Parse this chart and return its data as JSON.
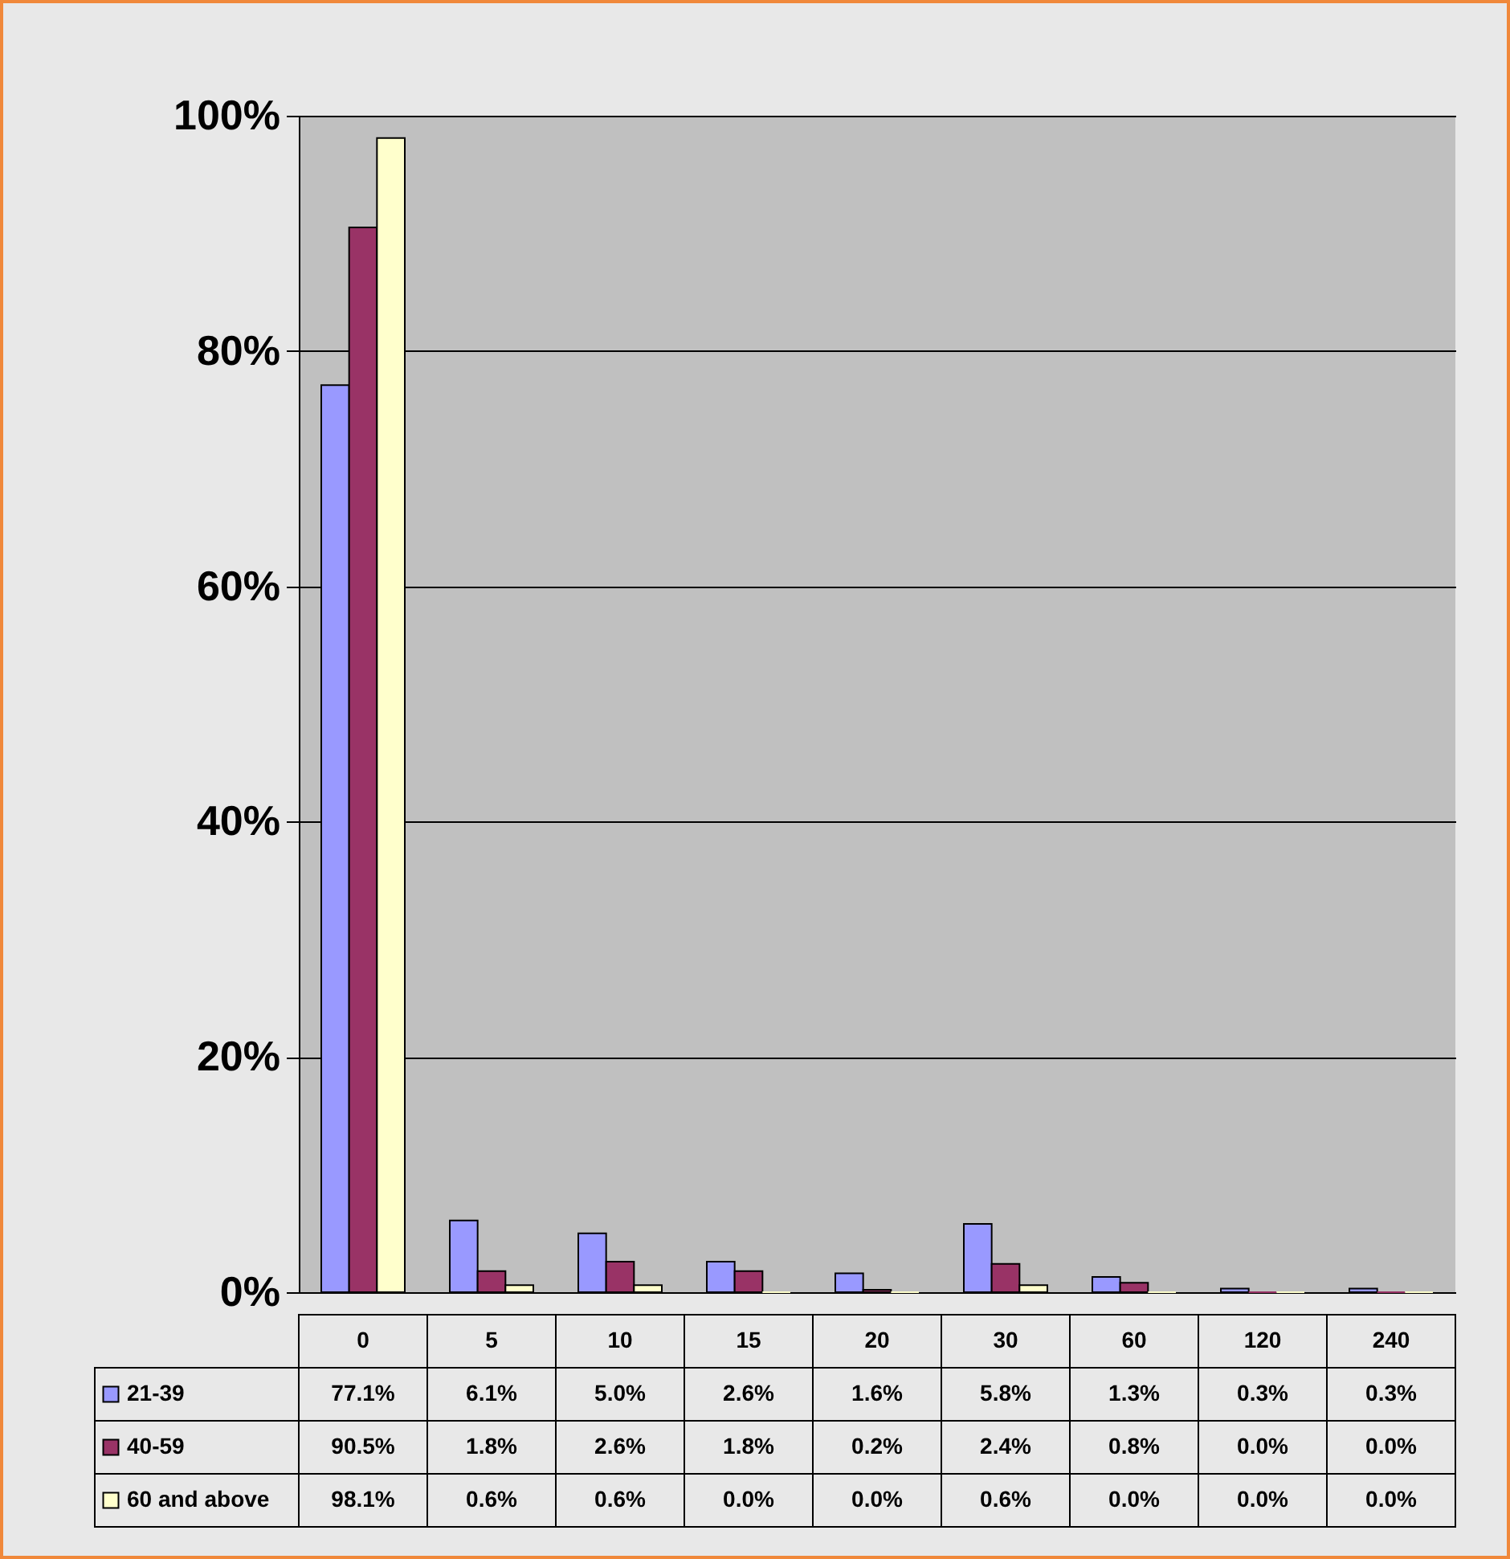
{
  "chart_data": {
    "type": "bar",
    "categories": [
      "0",
      "5",
      "10",
      "15",
      "20",
      "30",
      "60",
      "120",
      "240"
    ],
    "series": [
      {
        "name": "21-39",
        "color": "#9999ff",
        "values": [
          77.1,
          6.1,
          5.0,
          2.6,
          1.6,
          5.8,
          1.3,
          0.3,
          0.3
        ],
        "value_labels": [
          "77.1%",
          "6.1%",
          "5.0%",
          "2.6%",
          "1.6%",
          "5.8%",
          "1.3%",
          "0.3%",
          "0.3%"
        ]
      },
      {
        "name": "40-59",
        "color": "#993366",
        "values": [
          90.5,
          1.8,
          2.6,
          1.8,
          0.2,
          2.4,
          0.8,
          0.0,
          0.0
        ],
        "value_labels": [
          "90.5%",
          "1.8%",
          "2.6%",
          "1.8%",
          "0.2%",
          "2.4%",
          "0.8%",
          "0.0%",
          "0.0%"
        ]
      },
      {
        "name": "60 and above",
        "color": "#ffffcc",
        "values": [
          98.1,
          0.6,
          0.6,
          0.0,
          0.0,
          0.6,
          0.0,
          0.0,
          0.0
        ],
        "value_labels": [
          "98.1%",
          "0.6%",
          "0.6%",
          "0.0%",
          "0.0%",
          "0.6%",
          "0.0%",
          "0.0%",
          "0.0%"
        ]
      }
    ],
    "ylim": [
      0,
      100
    ],
    "yticks": [
      {
        "value": 0,
        "label": "0%"
      },
      {
        "value": 20,
        "label": "20%"
      },
      {
        "value": 40,
        "label": "40%"
      },
      {
        "value": 60,
        "label": "60%"
      },
      {
        "value": 80,
        "label": "80%"
      },
      {
        "value": 100,
        "label": "100%"
      }
    ],
    "grid": "y",
    "legend": "bottom left"
  }
}
